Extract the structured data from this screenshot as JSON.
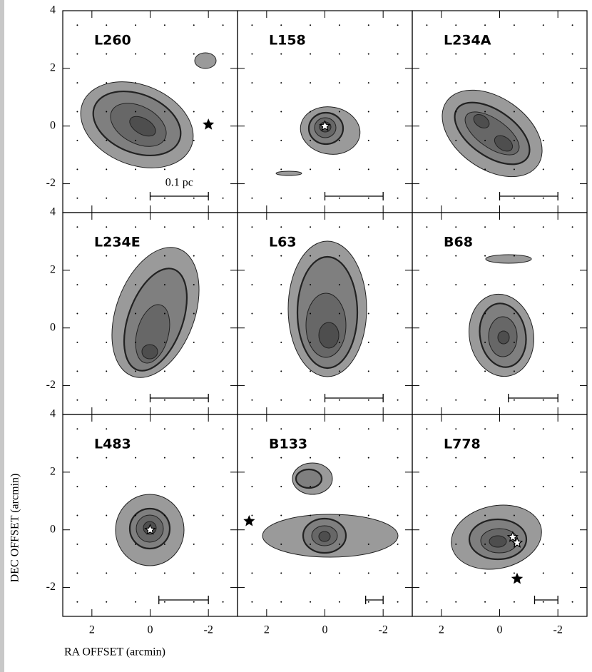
{
  "figure": {
    "x_label": "RA OFFSET (arcmin)",
    "y_label": "DEC OFFSET (arcmin)",
    "xlim": [
      3,
      -3
    ],
    "ylim": [
      -3,
      4
    ],
    "xticks": [
      2,
      0,
      -2
    ],
    "yticks": [
      -2,
      0,
      2,
      4
    ],
    "scale_label": "0.1 pc",
    "panels": [
      {
        "name": "L260",
        "scale_bar": [
          0,
          -2
        ],
        "stars": [
          {
            "x": -2,
            "y": 0.05,
            "color": "black"
          }
        ]
      },
      {
        "name": "L158",
        "scale_bar": [
          0,
          -2
        ],
        "stars": [
          {
            "x": 0,
            "y": 0,
            "color": "white"
          }
        ]
      },
      {
        "name": "L234A",
        "scale_bar": [
          0,
          -2
        ],
        "stars": []
      },
      {
        "name": "L234E",
        "scale_bar": [
          0,
          -2
        ],
        "stars": []
      },
      {
        "name": "L63",
        "scale_bar": [
          0,
          -2
        ],
        "stars": []
      },
      {
        "name": "B68",
        "scale_bar": [
          -0.3,
          -2
        ],
        "stars": []
      },
      {
        "name": "L483",
        "scale_bar": [
          -0.3,
          -2
        ],
        "stars": [
          {
            "x": 0,
            "y": 0,
            "color": "white"
          }
        ]
      },
      {
        "name": "B133",
        "scale_bar": [
          -1.4,
          -2
        ],
        "stars": [
          {
            "x": 2.6,
            "y": 0.3,
            "color": "black"
          }
        ]
      },
      {
        "name": "L778",
        "scale_bar": [
          -1.2,
          -2
        ],
        "stars": [
          {
            "x": -0.45,
            "y": -0.25,
            "color": "white"
          },
          {
            "x": -0.6,
            "y": -0.45,
            "color": "white"
          },
          {
            "x": -0.6,
            "y": -1.7,
            "color": "black"
          }
        ]
      }
    ]
  }
}
